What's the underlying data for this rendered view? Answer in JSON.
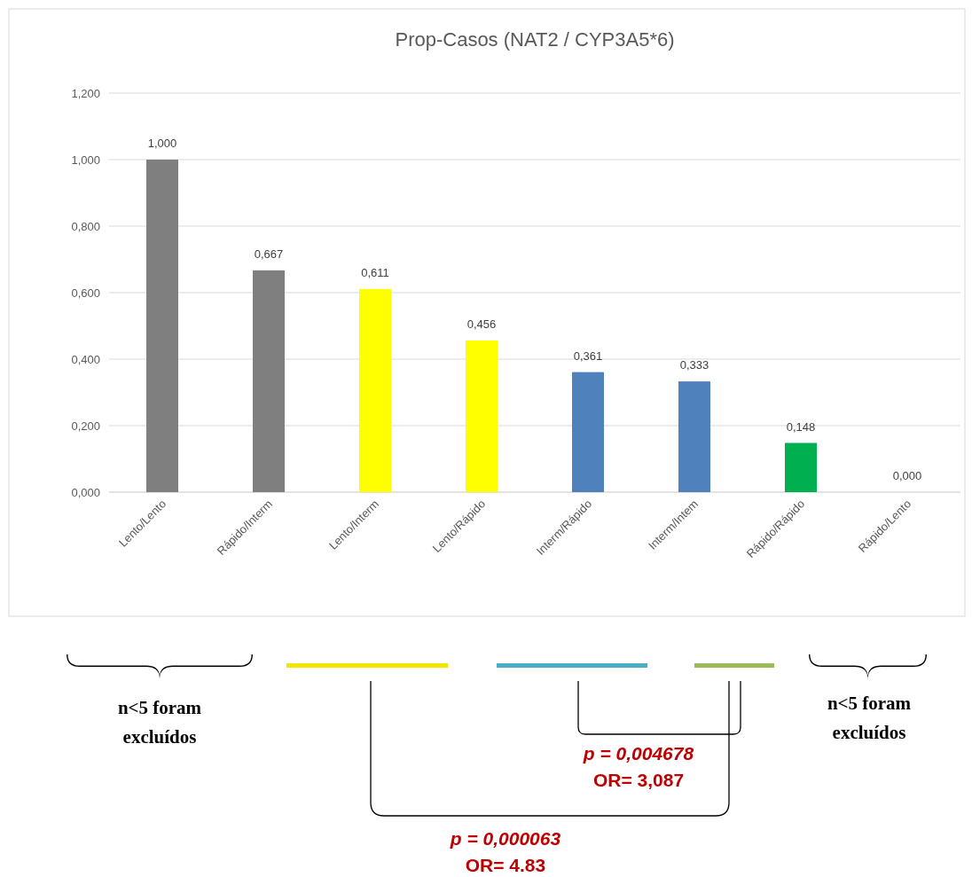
{
  "chart_data": {
    "type": "bar",
    "title": "Prop-Casos (NAT2 / CYP3A5*6)",
    "categories": [
      "Lento/Lento",
      "Rápido/Interm",
      "Lento/Interm",
      "Lento/Rápido",
      "Interm/Rápido",
      "Interm/Intem",
      "Rápido/Rápido",
      "Rápido/Lento"
    ],
    "values": [
      1.0,
      0.667,
      0.611,
      0.456,
      0.361,
      0.333,
      0.148,
      0.0
    ],
    "colors": [
      "#7f7f7f",
      "#7f7f7f",
      "#ffff00",
      "#ffff00",
      "#4f81bd",
      "#4f81bd",
      "#00b050",
      "#7f7f7f"
    ],
    "value_labels": [
      "1,000",
      "0,667",
      "0,611",
      "0,456",
      "0,361",
      "0,333",
      "0,148",
      "0,000"
    ],
    "ylim": [
      0,
      1.2
    ],
    "yticks": [
      {
        "value": 0,
        "label": "0,000"
      },
      {
        "value": 0.2,
        "label": "0,200"
      },
      {
        "value": 0.4,
        "label": "0,400"
      },
      {
        "value": 0.6,
        "label": "0,600"
      },
      {
        "value": 0.8,
        "label": "0,800"
      },
      {
        "value": 1.0,
        "label": "1,000"
      },
      {
        "value": 1.2,
        "label": "1,200"
      }
    ],
    "grid": "y",
    "annotations": [
      "n<5 foram excluídos",
      "n<5 foram excluídos",
      "p = 0,004678",
      "OR= 3,087",
      "p = 0,000063",
      "OR= 4.83"
    ]
  }
}
